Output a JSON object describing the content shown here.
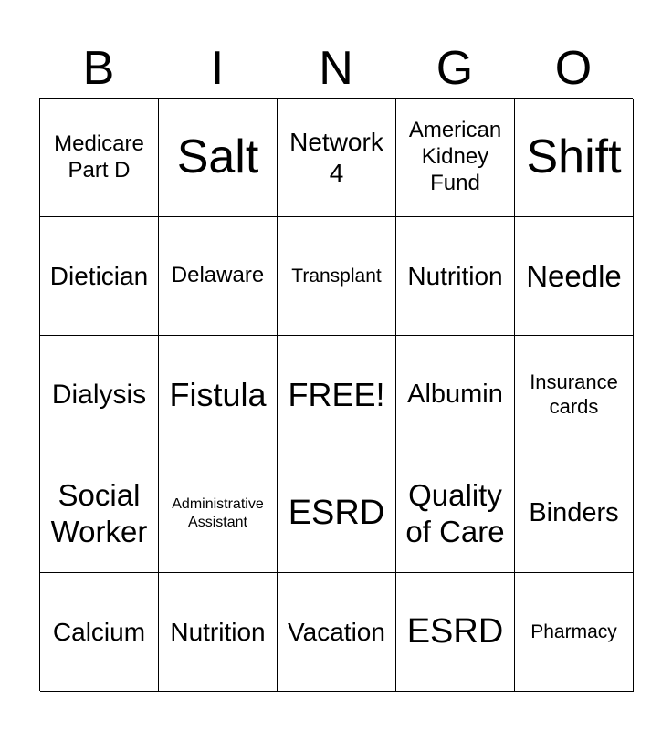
{
  "header": [
    "B",
    "I",
    "N",
    "G",
    "O"
  ],
  "cells": [
    "Medicare\nPart D",
    "Salt",
    "Network\n4",
    "American\nKidney\nFund",
    "Shift",
    "Dietician",
    "Delaware",
    "Transplant",
    "Nutrition",
    "Needle",
    "Dialysis",
    "Fistula",
    "FREE!",
    "Albumin",
    "Insurance\ncards",
    "Social\nWorker",
    "Administrative\nAssistant",
    "ESRD",
    "Quality\nof Care",
    "Binders",
    "Calcium",
    "Nutrition",
    "Vacation",
    "ESRD",
    "Pharmacy"
  ]
}
